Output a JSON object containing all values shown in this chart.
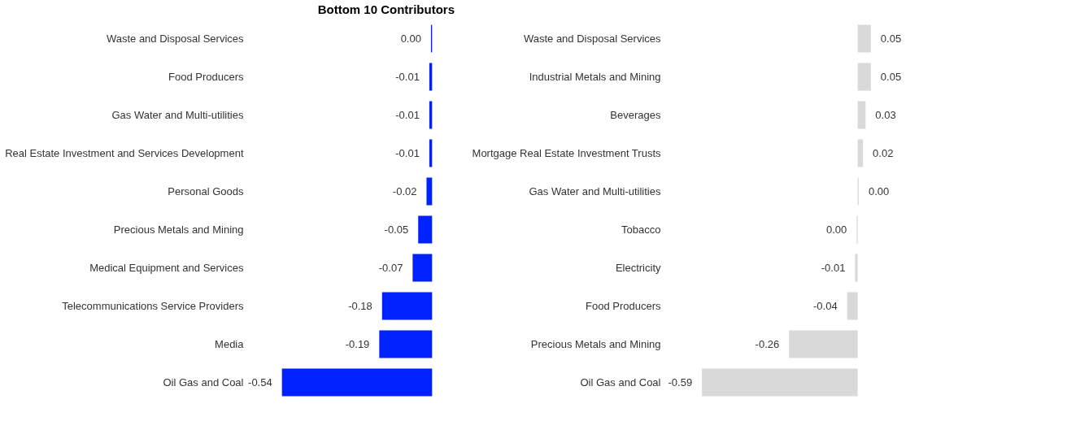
{
  "chart_data": [
    {
      "type": "bar",
      "orientation": "horizontal",
      "title": "Bottom 10 Contributors",
      "categories": [
        "Waste and Disposal Services",
        "Food Producers",
        "Gas Water and Multi-utilities",
        "Real Estate Investment and Services Development",
        "Personal Goods",
        "Precious Metals and Mining",
        "Medical Equipment and Services",
        "Telecommunications Service Providers",
        "Media",
        "Oil Gas and Coal"
      ],
      "series": [
        {
          "color": "#0022ff",
          "values": [
            -0.004,
            -0.01,
            -0.01,
            -0.01,
            -0.02,
            -0.05,
            -0.07,
            -0.18,
            -0.19,
            -0.54
          ],
          "value_labels": [
            "0.00",
            "-0.01",
            "-0.01",
            "-0.01",
            "-0.02",
            "-0.05",
            "-0.07",
            "-0.18",
            "-0.19",
            "-0.54"
          ]
        }
      ]
    },
    {
      "type": "bar",
      "orientation": "horizontal",
      "categories": [
        "Waste and Disposal Services",
        "Industrial Metals and Mining",
        "Beverages",
        "Mortgage Real Estate Investment Trusts",
        "Gas Water and Multi-utilities",
        "Tobacco",
        "Electricity",
        "Food Producers",
        "Precious Metals and Mining",
        "Oil Gas and Coal"
      ],
      "series": [
        {
          "color": "#d9d9d9",
          "values": [
            0.05,
            0.05,
            0.03,
            0.02,
            0.004,
            -0.004,
            -0.01,
            -0.04,
            -0.26,
            -0.59
          ],
          "value_labels": [
            "0.05",
            "0.05",
            "0.03",
            "0.02",
            "0.00",
            "0.00",
            "-0.01",
            "-0.04",
            "-0.26",
            "-0.59"
          ]
        }
      ]
    }
  ]
}
